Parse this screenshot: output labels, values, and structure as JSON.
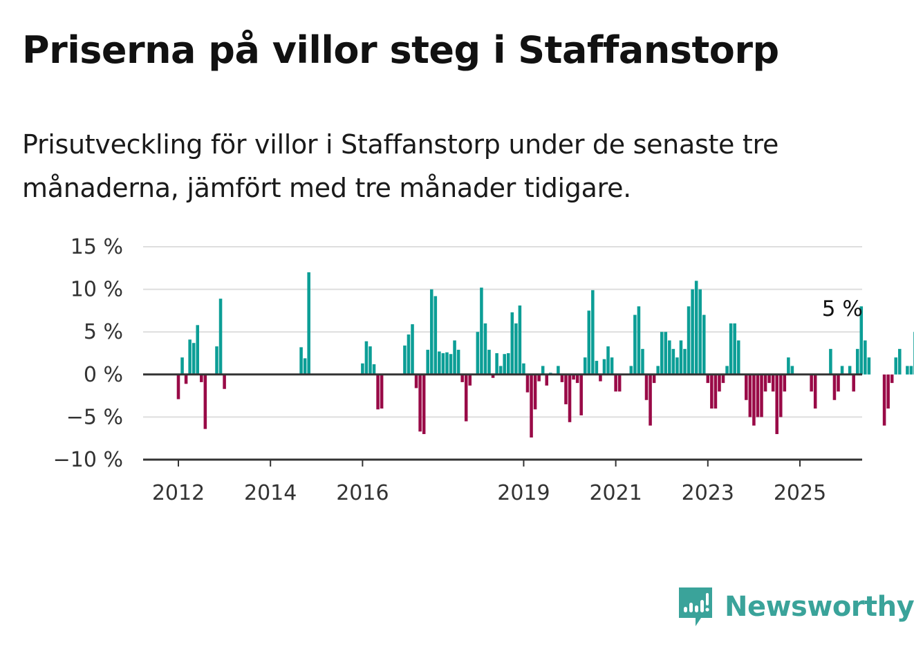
{
  "title": "Priserna på villor steg i Staffanstorp",
  "subtitle": "Prisutveckling för villor i Staffanstorp under de senaste tre månaderna, jämfört med tre månader tidigare.",
  "brand": {
    "name": "Newsworthy",
    "icon": "newsworthy-logo-icon",
    "color": "#3aa39a"
  },
  "colors": {
    "positive": "#0c9e96",
    "negative": "#990a47",
    "grid": "#dedede",
    "axis": "#333333"
  },
  "chart_data": {
    "type": "bar",
    "x_start": "2011-01",
    "frequency": "monthly",
    "ylim": [
      -10,
      15
    ],
    "yticks": [
      {
        "value": 15,
        "label": "15 %"
      },
      {
        "value": 10,
        "label": "10 %"
      },
      {
        "value": 5,
        "label": "5 %"
      },
      {
        "value": 0,
        "label": "0 %"
      },
      {
        "value": -5,
        "label": "−5 %"
      },
      {
        "value": -10,
        "label": "−10 %"
      }
    ],
    "xticks": [
      {
        "value": "2012-01",
        "label": "2012"
      },
      {
        "value": "2014-01",
        "label": "2014"
      },
      {
        "value": "2016-01",
        "label": "2016"
      },
      {
        "value": "2019-07",
        "label": "2019"
      },
      {
        "value": "2021-07",
        "label": "2021"
      },
      {
        "value": "2023-07",
        "label": "2023"
      },
      {
        "value": "2025-07",
        "label": "2025"
      }
    ],
    "grid": true,
    "annotation": {
      "text": "5 %",
      "value": 5,
      "x": "2026-01"
    },
    "values": [
      null,
      null,
      null,
      null,
      null,
      null,
      null,
      null,
      null,
      null,
      null,
      null,
      -2.9,
      2,
      -1.1,
      4.1,
      3.7,
      5.8,
      -0.9,
      -6.4,
      null,
      null,
      3.3,
      8.9,
      -1.7,
      null,
      null,
      null,
      null,
      null,
      null,
      null,
      null,
      null,
      null,
      null,
      null,
      null,
      null,
      null,
      null,
      null,
      null,
      null,
      3.2,
      1.9,
      12,
      null,
      null,
      null,
      null,
      null,
      null,
      null,
      null,
      null,
      null,
      null,
      null,
      null,
      1.3,
      3.9,
      3.3,
      1.2,
      -4.1,
      -4,
      null,
      null,
      null,
      null,
      null,
      3.4,
      4.7,
      5.9,
      -1.6,
      -6.7,
      -7,
      2.9,
      10,
      9.2,
      2.7,
      2.5,
      2.6,
      2.4,
      4,
      2.9,
      -0.9,
      -5.5,
      -1.3,
      null,
      5,
      10.2,
      6,
      2.9,
      -0.4,
      2.5,
      1,
      2.4,
      2.5,
      7.3,
      6,
      8.1,
      1.3,
      -2.1,
      -7.4,
      -4.1,
      -0.8,
      1,
      -1.3,
      0.2,
      null,
      1,
      -0.9,
      -3.5,
      -5.6,
      -0.6,
      -1,
      -4.8,
      2,
      7.5,
      9.9,
      1.6,
      -0.8,
      1.8,
      3.3,
      2,
      -2,
      -2,
      null,
      null,
      1,
      7,
      8,
      3,
      -3,
      -6,
      -1,
      1,
      5,
      5,
      4,
      3,
      2,
      4,
      3,
      8,
      10,
      11,
      10,
      7,
      -1,
      -4,
      -4,
      -2,
      -1,
      1,
      6,
      6,
      4,
      null,
      -3,
      -5,
      -6,
      -5,
      -5,
      -2,
      -1,
      -2,
      -7,
      -5,
      -2,
      2,
      1,
      null,
      null,
      null,
      null,
      -2,
      -4,
      null,
      null,
      null,
      3,
      -3,
      -2,
      1,
      null,
      1,
      -2,
      3,
      8,
      4,
      2,
      null,
      null,
      null,
      -6,
      -4,
      -1,
      2,
      3,
      null,
      1,
      1,
      5
    ]
  }
}
